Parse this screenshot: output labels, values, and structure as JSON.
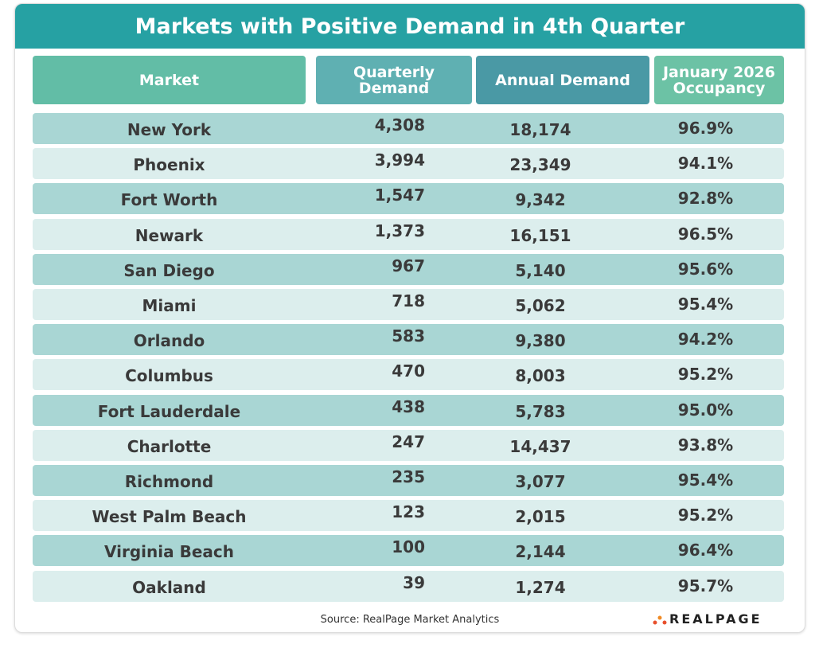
{
  "header": {
    "title": "Markets with Positive Demand in 4th Quarter"
  },
  "table": {
    "columns": [
      "Market",
      "Quarterly Demand",
      "Annual Demand",
      "January 2026 Occupancy"
    ],
    "rows": [
      [
        "New York",
        "4,308",
        "18,174",
        "96.9%"
      ],
      [
        "Phoenix",
        "3,994",
        "23,349",
        "94.1%"
      ],
      [
        "Fort Worth",
        "1,547",
        "9,342",
        "92.8%"
      ],
      [
        "Newark",
        "1,373",
        "16,151",
        "96.5%"
      ],
      [
        "San Diego",
        "967",
        "5,140",
        "95.6%"
      ],
      [
        "Miami",
        "718",
        "5,062",
        "95.4%"
      ],
      [
        "Orlando",
        "583",
        "9,380",
        "94.2%"
      ],
      [
        "Columbus",
        "470",
        "8,003",
        "95.2%"
      ],
      [
        "Fort Lauderdale",
        "438",
        "5,783",
        "95.0%"
      ],
      [
        "Charlotte",
        "247",
        "14,437",
        "93.8%"
      ],
      [
        "Richmond",
        "235",
        "3,077",
        "95.4%"
      ],
      [
        "West Palm Beach",
        "123",
        "2,015",
        "95.2%"
      ],
      [
        "Virginia Beach",
        "100",
        "2,144",
        "96.4%"
      ],
      [
        "Oakland",
        "39",
        "1,274",
        "95.7%"
      ]
    ]
  },
  "footer": {
    "source": "Source:  RealPage Market Analytics",
    "logo": "REALPAGE"
  }
}
